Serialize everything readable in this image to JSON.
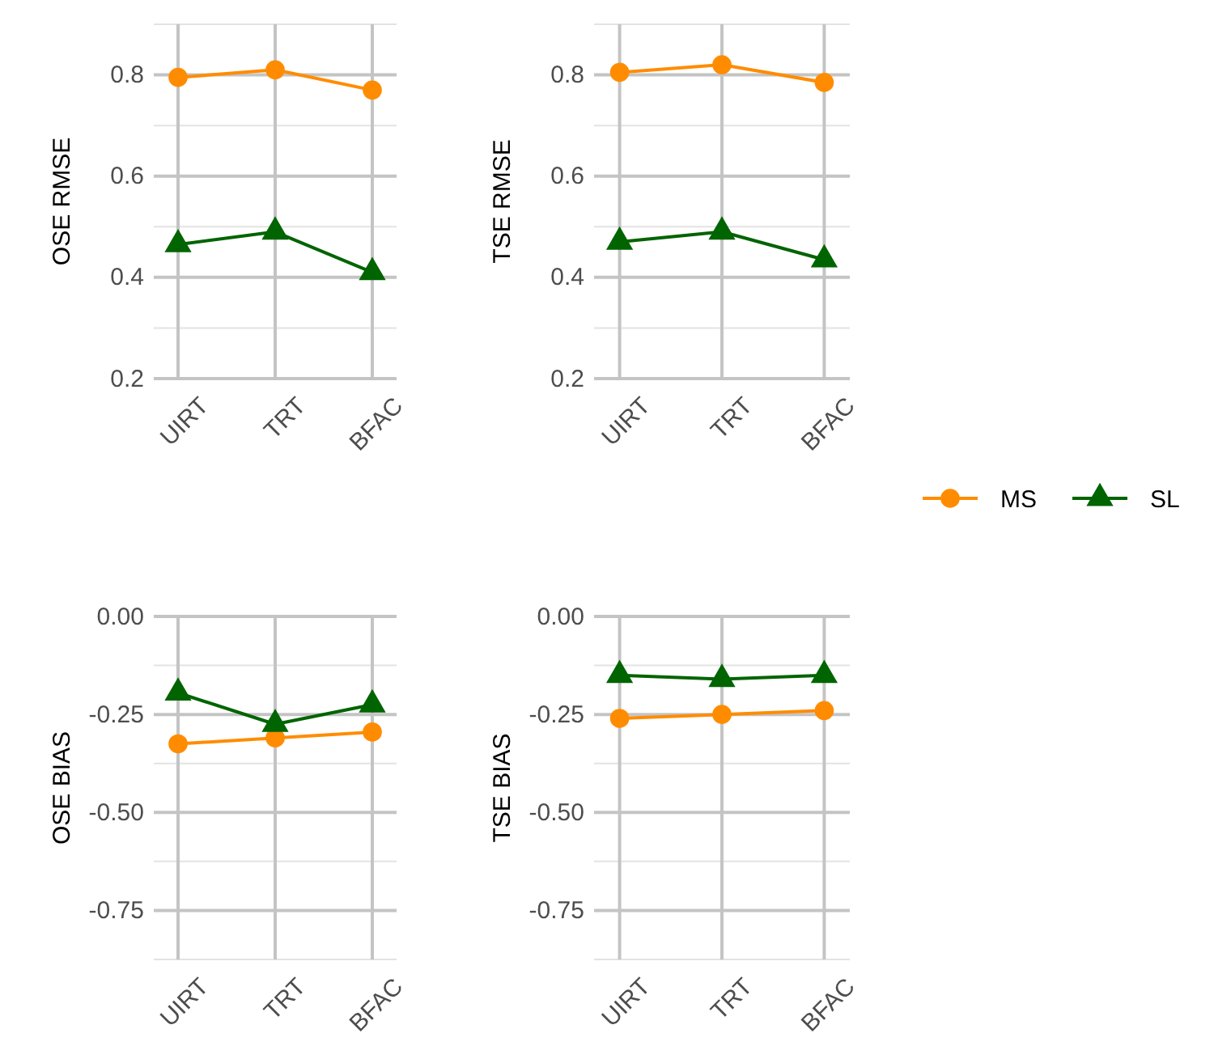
{
  "chart_data": [
    {
      "type": "line",
      "ylabel": "OSE RMSE",
      "categories": [
        "UIRT",
        "TRT",
        "BFAC"
      ],
      "ylim": [
        0.2,
        0.9
      ],
      "yticks": [
        {
          "value": 0.2,
          "label": "0.2"
        },
        {
          "value": 0.4,
          "label": "0.4"
        },
        {
          "value": 0.6,
          "label": "0.6"
        },
        {
          "value": 0.8,
          "label": "0.8"
        }
      ],
      "grid": true,
      "series": [
        {
          "color": "#ff8c00",
          "marker": "circle",
          "values": [
            0.795,
            0.81,
            0.77
          ]
        },
        {
          "color": "#006400",
          "marker": "triangle",
          "values": [
            0.465,
            0.49,
            0.41
          ]
        }
      ]
    },
    {
      "type": "line",
      "ylabel": "TSE RMSE",
      "categories": [
        "UIRT",
        "TRT",
        "BFAC"
      ],
      "ylim": [
        0.2,
        0.9
      ],
      "yticks": [
        {
          "value": 0.2,
          "label": "0.2"
        },
        {
          "value": 0.4,
          "label": "0.4"
        },
        {
          "value": 0.6,
          "label": "0.6"
        },
        {
          "value": 0.8,
          "label": "0.8"
        }
      ],
      "grid": true,
      "legend": "right",
      "series": [
        {
          "name": "MS",
          "color": "#ff8c00",
          "marker": "circle",
          "values": [
            0.805,
            0.82,
            0.785
          ]
        },
        {
          "name": "SL",
          "color": "#006400",
          "marker": "triangle",
          "values": [
            0.47,
            0.49,
            0.435
          ]
        }
      ]
    },
    {
      "type": "line",
      "ylabel": "OSE BIAS",
      "categories": [
        "UIRT",
        "TRT",
        "BFAC"
      ],
      "ylim": [
        -0.875,
        0
      ],
      "yticks": [
        {
          "value": -0.75,
          "label": "-0.75"
        },
        {
          "value": -0.5,
          "label": "-0.50"
        },
        {
          "value": -0.25,
          "label": "-0.25"
        },
        {
          "value": 0,
          "label": "0.00"
        }
      ],
      "grid": true,
      "series": [
        {
          "color": "#ff8c00",
          "marker": "circle",
          "values": [
            -0.325,
            -0.31,
            -0.295
          ]
        },
        {
          "color": "#006400",
          "marker": "triangle",
          "values": [
            -0.195,
            -0.275,
            -0.225
          ]
        }
      ]
    },
    {
      "type": "line",
      "ylabel": "TSE BIAS",
      "categories": [
        "UIRT",
        "TRT",
        "BFAC"
      ],
      "ylim": [
        -0.875,
        0
      ],
      "yticks": [
        {
          "value": -0.75,
          "label": "-0.75"
        },
        {
          "value": -0.5,
          "label": "-0.50"
        },
        {
          "value": -0.25,
          "label": "-0.25"
        },
        {
          "value": 0,
          "label": "0.00"
        }
      ],
      "grid": true,
      "series": [
        {
          "color": "#ff8c00",
          "marker": "circle",
          "values": [
            -0.26,
            -0.25,
            -0.24
          ]
        },
        {
          "color": "#006400",
          "marker": "triangle",
          "values": [
            -0.15,
            -0.16,
            -0.15
          ]
        }
      ]
    }
  ]
}
